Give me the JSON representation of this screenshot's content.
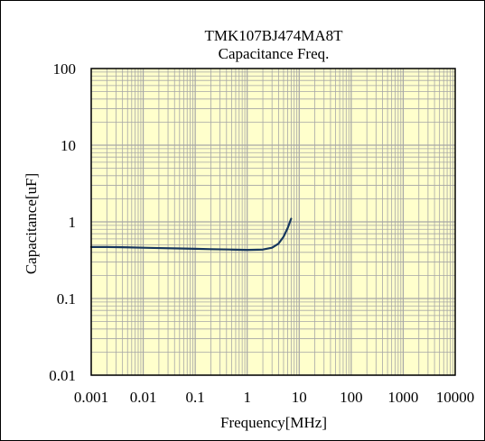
{
  "chart_data": {
    "type": "line",
    "title": "TMK107BJ474MA8T",
    "subtitle": "Capacitance Freq.",
    "xlabel": "Frequency[MHz]",
    "ylabel": "Capacitance[uF]",
    "x_scale": "log",
    "y_scale": "log",
    "xlim": [
      0.001,
      10000
    ],
    "ylim": [
      0.01,
      100
    ],
    "x_ticks": [
      "0.001",
      "0.01",
      "0.1",
      "1",
      "10",
      "100",
      "1000",
      "10000"
    ],
    "y_ticks": [
      "100",
      "10",
      "1",
      "0.1",
      "0.01"
    ],
    "grid": true,
    "legend": "none",
    "plot_background": "#ffffcc",
    "grid_color": "#a6a6a6",
    "line_color": "#17375e",
    "series": [
      {
        "x": [
          0.001,
          0.002,
          0.005,
          0.01,
          0.02,
          0.05,
          0.1,
          0.2,
          0.5,
          1,
          2,
          3,
          4,
          5,
          6,
          7
        ],
        "y": [
          0.47,
          0.47,
          0.465,
          0.46,
          0.455,
          0.45,
          0.445,
          0.44,
          0.435,
          0.43,
          0.435,
          0.46,
          0.52,
          0.64,
          0.83,
          1.1
        ]
      }
    ]
  }
}
